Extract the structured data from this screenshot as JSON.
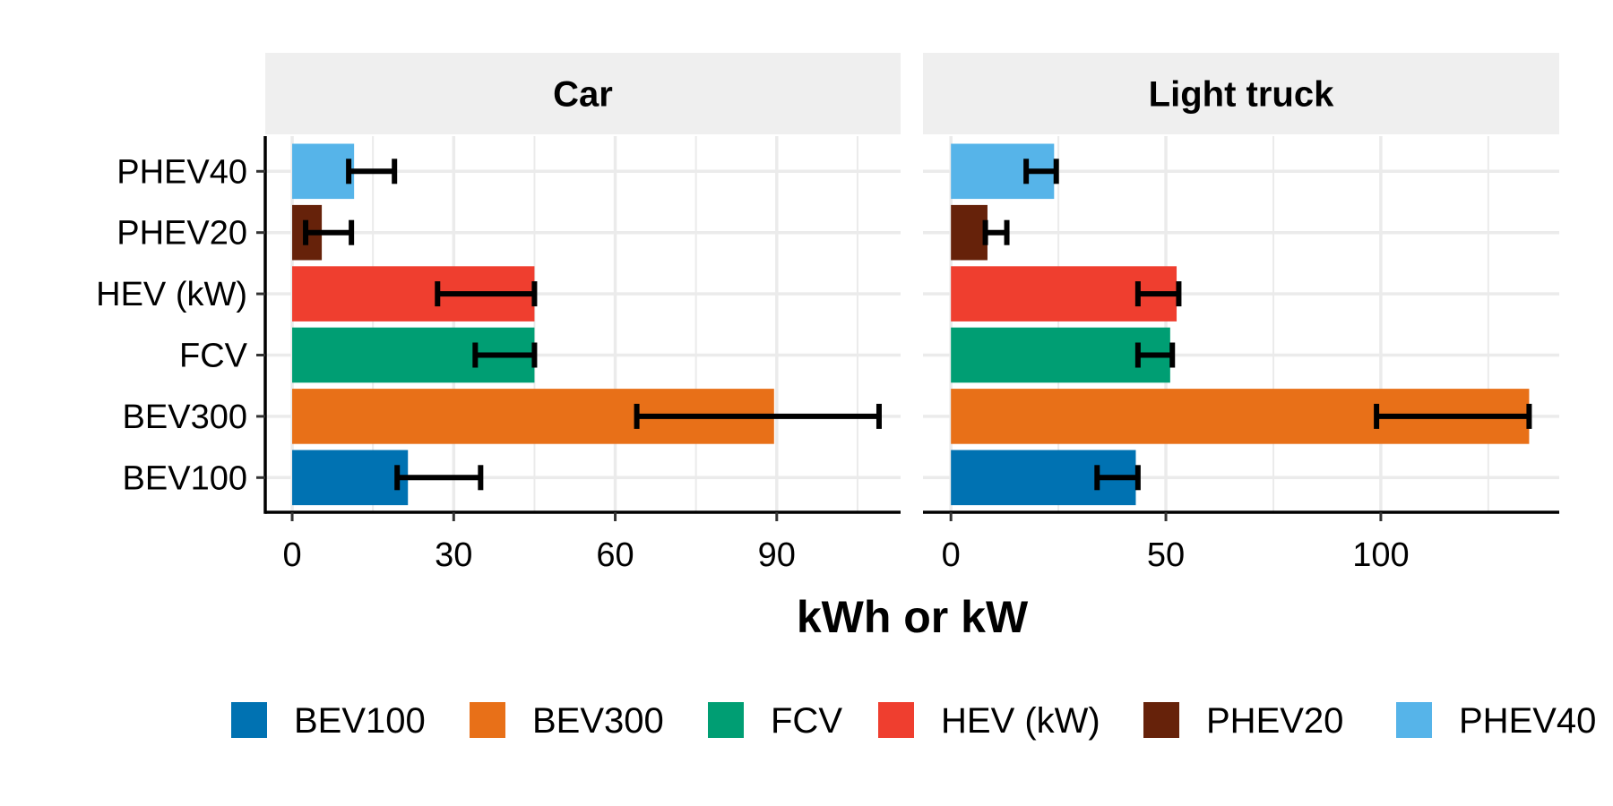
{
  "chart_data": {
    "type": "bar",
    "orientation": "horizontal",
    "facets": [
      "Car",
      "Light truck"
    ],
    "categories": [
      "BEV100",
      "BEV300",
      "FCV",
      "HEV (kW)",
      "PHEV20",
      "PHEV40"
    ],
    "xlabel": "kWh or kW",
    "ylabel": "",
    "grid": true,
    "legend_position": "bottom",
    "legend": [
      "BEV100",
      "BEV300",
      "FCV",
      "HEV (kW)",
      "PHEV20",
      "PHEV40"
    ],
    "colors": {
      "BEV100": "#0072B2",
      "BEV300": "#E87018",
      "FCV": "#009E73",
      "HEV (kW)": "#EF3E2F",
      "PHEV20": "#66220A",
      "PHEV40": "#56B4E9"
    },
    "panels": [
      {
        "facet": "Car",
        "xlim": [
          -5,
          113
        ],
        "xticks": [
          0,
          30,
          60,
          90
        ],
        "values": [
          21.5,
          89.5,
          45,
          45,
          5.5,
          11.5
        ],
        "error_low": [
          19.5,
          64,
          34,
          27,
          2.5,
          10.5
        ],
        "error_high": [
          35,
          109,
          45,
          45,
          11,
          19
        ]
      },
      {
        "facet": "Light truck",
        "xlim": [
          -6.5,
          141.5
        ],
        "xticks": [
          0,
          50,
          100
        ],
        "values": [
          43,
          134.5,
          51,
          52.5,
          8.5,
          24
        ],
        "error_low": [
          34,
          99,
          43.5,
          43.5,
          8,
          17.5
        ],
        "error_high": [
          43.5,
          134.5,
          51.5,
          53,
          13,
          24.5
        ]
      }
    ]
  }
}
